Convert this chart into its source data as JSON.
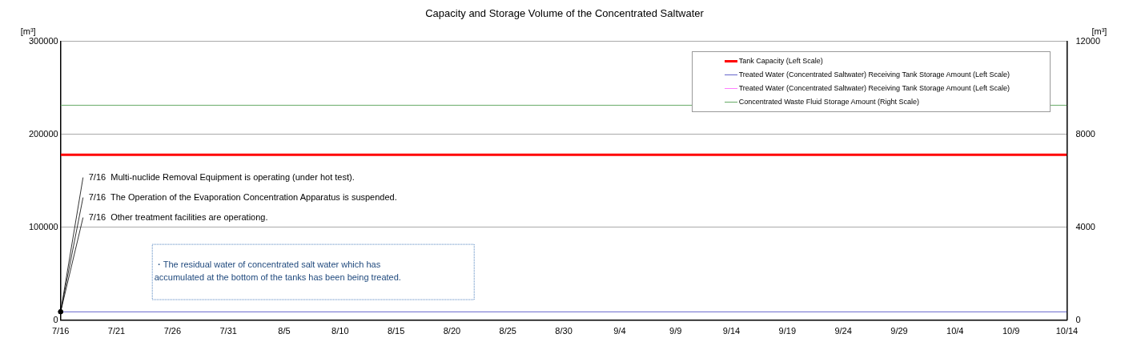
{
  "chart_data": {
    "type": "line",
    "title": "Capacity and Storage Volume of the Concentrated Saltwater",
    "ylabel": "[m³]",
    "y2label": "[m³]",
    "x": [
      "--07-16",
      "--10-14"
    ],
    "xlim": [
      "--07-16",
      "--10-14"
    ],
    "xticks": [
      {
        "value": "--07-16",
        "label": "7/16"
      },
      {
        "value": "--07-21",
        "label": "7/21"
      },
      {
        "value": "--07-26",
        "label": "7/26"
      },
      {
        "value": "--07-31",
        "label": "7/31"
      },
      {
        "value": "--08-05",
        "label": "8/5"
      },
      {
        "value": "--08-10",
        "label": "8/10"
      },
      {
        "value": "--08-15",
        "label": "8/15"
      },
      {
        "value": "--08-20",
        "label": "8/20"
      },
      {
        "value": "--08-25",
        "label": "8/25"
      },
      {
        "value": "--08-30",
        "label": "8/30"
      },
      {
        "value": "--09-04",
        "label": "9/4"
      },
      {
        "value": "--09-09",
        "label": "9/9"
      },
      {
        "value": "--09-14",
        "label": "9/14"
      },
      {
        "value": "--09-19",
        "label": "9/19"
      },
      {
        "value": "--09-24",
        "label": "9/24"
      },
      {
        "value": "--09-29",
        "label": "9/29"
      },
      {
        "value": "--10-04",
        "label": "10/4"
      },
      {
        "value": "--10-09",
        "label": "10/9"
      },
      {
        "value": "--10-14",
        "label": "10/14"
      }
    ],
    "ylim": [
      0,
      300000
    ],
    "yticks": [
      0,
      100000,
      200000,
      300000
    ],
    "y2lim": [
      0,
      12000
    ],
    "y2ticks": [
      0,
      4000,
      8000,
      12000
    ],
    "series": [
      {
        "name": "Tank Capacity (Left Scale)",
        "color": "#ff0000",
        "values": [
          178000,
          178000
        ]
      },
      {
        "name": "Treated Water (Concentrated Saltwater) Receiving Tank Storage Amount (Left Scale)",
        "color": "#6666cc",
        "values": [
          9000,
          9000
        ]
      },
      {
        "name": "Treated Water (Concentrated Saltwater) Receiving Tank Storage Amount (Left Scale)",
        "color": "#ff80ff",
        "values": [
          null,
          null
        ]
      },
      {
        "name": "Concentrated Waste Fluid Storage Amount (Right Scale)",
        "color": "#66aa66",
        "axis": "y2",
        "values": [
          9250,
          9250
        ]
      }
    ],
    "annotations": [
      {
        "text": "7/16  Multi-nuclide Removal Equipment is operating (under hot test).",
        "x": "--07-16",
        "y": 9000
      },
      {
        "text": "7/16  The Operation of the Evaporation Concentration Apparatus is suspended.",
        "x": "--07-16",
        "y": 9000
      },
      {
        "text": "7/16  Other treatment facilities are operationg.",
        "x": "--07-16",
        "y": 9000
      },
      "・The residual water of concentrated salt water which has accumulated at the bottom of the tanks has been being treated."
    ],
    "grid": "y",
    "legend": "top right"
  }
}
